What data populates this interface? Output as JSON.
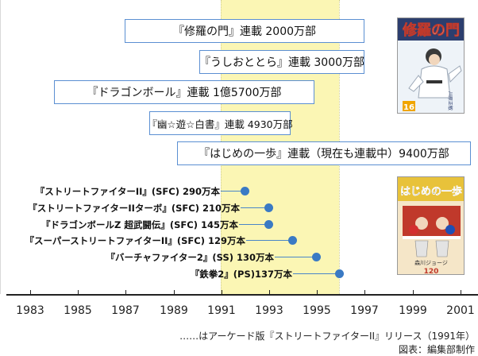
{
  "years": [
    "1983",
    "1985",
    "1987",
    "1989",
    "1991",
    "1993",
    "1995",
    "1997",
    "1999",
    "2001"
  ],
  "manga": [
    {
      "label": "『修羅の門』連載 2000万部"
    },
    {
      "label": "『うしおととら』連載 3000万部"
    },
    {
      "label": "『ドラゴンボール』連載 1億5700万部"
    },
    {
      "label": "『幽☆遊☆白書』連載 4930万部"
    },
    {
      "label": "『はじめの一歩』連載（現在も連載中）9400万部"
    }
  ],
  "games": [
    {
      "label": "『ストリートファイターII』(SFC) 290万本"
    },
    {
      "label": "『ストリートファイターIIターボ』(SFC) 210万本"
    },
    {
      "label": "『ドラゴンボールZ 超武闘伝』(SFC) 145万本"
    },
    {
      "label": "『スーパーストリートファイターII』(SFC) 129万本"
    },
    {
      "label": "『バーチャファイター2』(SS) 130万本"
    },
    {
      "label": "『鉄拳2』(PS)137万本"
    }
  ],
  "covers": {
    "shura": {
      "title": "修羅の門",
      "volume": "16",
      "author": "川原正敏"
    },
    "hajime": {
      "title": "はじめの一歩",
      "volume": "120",
      "author": "森川ジョージ"
    }
  },
  "notes": {
    "arcade": "……はアーケード版『ストリートファイターII』リリース（1991年）",
    "credit": "図表：編集部制作"
  },
  "colors": {
    "highlight": "#fbf6b4",
    "box_border": "#5b8fd2",
    "dot": "#3a7ac4"
  }
}
